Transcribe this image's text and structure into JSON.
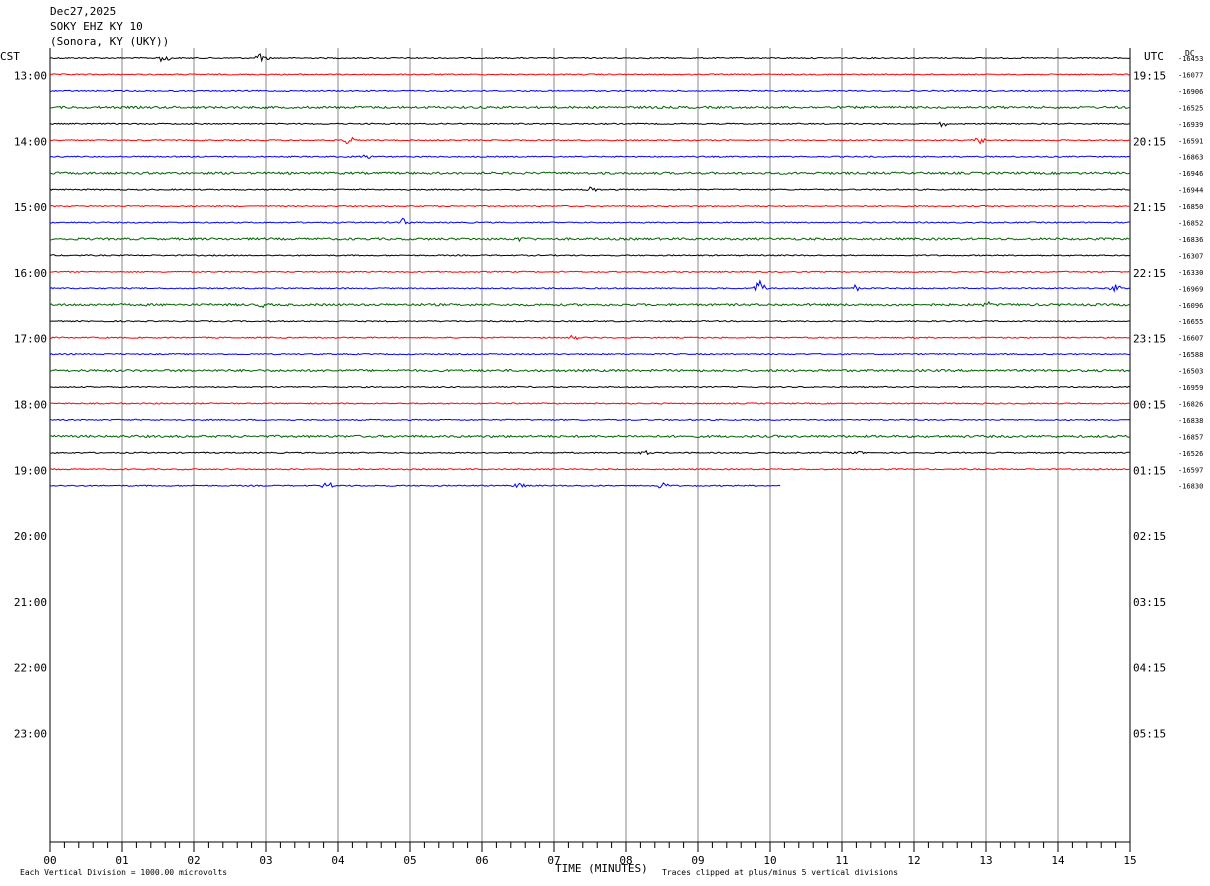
{
  "header": {
    "date": "Dec27,2025",
    "station": "SOKY EHZ KY 10",
    "location": "(Sonora, KY (UKY))"
  },
  "axes": {
    "left_zone": "CST",
    "right_zone": "UTC",
    "dc_label": "DC",
    "xlabel": "TIME (MINUTES)"
  },
  "footer": {
    "scale_note": "Each Vertical Division = 1000.00 microvolts",
    "clip_note": "Traces clipped at plus/minus 5 vertical divisions"
  },
  "chart_data": {
    "type": "line",
    "title": "SOKY EHZ KY 10",
    "xlabel": "TIME (MINUTES)",
    "xlim": [
      0,
      15
    ],
    "x_ticks": [
      "00",
      "01",
      "02",
      "03",
      "04",
      "05",
      "06",
      "07",
      "08",
      "09",
      "10",
      "11",
      "12",
      "13",
      "14",
      "15"
    ],
    "y_ticks_cst": [
      "13:00",
      "14:00",
      "15:00",
      "16:00",
      "17:00",
      "18:00",
      "19:00",
      "20:00",
      "21:00",
      "22:00",
      "23:00"
    ],
    "y_ticks_utc": [
      "19:15",
      "20:15",
      "21:15",
      "22:15",
      "23:15",
      "00:15",
      "01:15",
      "02:15",
      "03:15",
      "04:15",
      "05:15"
    ],
    "first_trace_hour_offset": 0.75,
    "trace_interval_minutes": 15,
    "total_slots": 49,
    "trace_colors": [
      "#000000",
      "#ff0000",
      "#0000ff",
      "#006400"
    ],
    "dc_offsets": [
      "-16453",
      "-16077",
      "-16906",
      "-16525",
      "-16939",
      "-16591",
      "-16863",
      "-16946",
      "-16944",
      "-16850",
      "-16852",
      "-16836",
      "-16307",
      "-16330",
      "-16969",
      "-16096",
      "-16655",
      "-16607",
      "-16588",
      "-16503",
      "-16959",
      "-16826",
      "-16838",
      "-16857",
      "-16526",
      "-16597",
      "-16830"
    ],
    "last_trace_end_minute": 10.15,
    "events": [
      {
        "trace": 0,
        "minute": 1.6,
        "amp": 1.0
      },
      {
        "trace": 0,
        "minute": 2.95,
        "amp": 0.9
      },
      {
        "trace": 4,
        "minute": 12.4,
        "amp": 0.5
      },
      {
        "trace": 5,
        "minute": 4.15,
        "amp": 0.6
      },
      {
        "trace": 5,
        "minute": 12.9,
        "amp": 0.7
      },
      {
        "trace": 6,
        "minute": 4.4,
        "amp": 0.4
      },
      {
        "trace": 8,
        "minute": 7.55,
        "amp": 0.6
      },
      {
        "trace": 10,
        "minute": 4.9,
        "amp": 0.6
      },
      {
        "trace": 11,
        "minute": 6.55,
        "amp": 0.5
      },
      {
        "trace": 14,
        "minute": 9.85,
        "amp": 1.2
      },
      {
        "trace": 14,
        "minute": 11.2,
        "amp": 0.5
      },
      {
        "trace": 14,
        "minute": 14.8,
        "amp": 0.6
      },
      {
        "trace": 15,
        "minute": 2.95,
        "amp": 0.5
      },
      {
        "trace": 15,
        "minute": 13.05,
        "amp": 0.5
      },
      {
        "trace": 17,
        "minute": 7.25,
        "amp": 0.4
      },
      {
        "trace": 24,
        "minute": 8.25,
        "amp": 0.4
      },
      {
        "trace": 24,
        "minute": 11.2,
        "amp": 0.4
      },
      {
        "trace": 26,
        "minute": 3.85,
        "amp": 0.6
      },
      {
        "trace": 26,
        "minute": 6.5,
        "amp": 0.5
      },
      {
        "trace": 26,
        "minute": 8.5,
        "amp": 0.6
      }
    ]
  }
}
